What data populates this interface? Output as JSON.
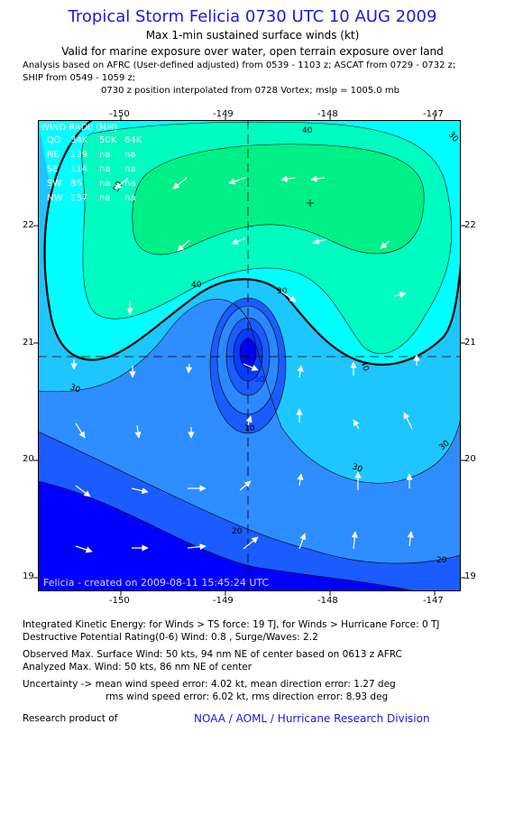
{
  "header": {
    "title": "Tropical Storm Felicia 0730 UTC 10 AUG 2009",
    "subtitle": "Max 1-min sustained surface winds (kt)",
    "valid": "Valid for marine exposure over water, open terrain exposure over land",
    "analysis_line1": "Analysis based on  AFRC (User-defined adjusted) from 0539 - 1103 z;  ASCAT from 0729 - 0732 z;",
    "analysis_line2": "SHIP from 0549 - 1059 z;",
    "analysis_line3": "0730 z position interpolated from 0728 Vortex; mslp = 1005.0 mb"
  },
  "map": {
    "lon_labels": [
      "-150",
      "-149",
      "-148",
      "-147"
    ],
    "lat_labels": [
      "22",
      "21",
      "20",
      "19"
    ],
    "contour_labels": [
      "40",
      "50",
      "30",
      "40",
      "40",
      "30",
      "30",
      "30",
      "10",
      "30",
      "20",
      "20",
      "50"
    ],
    "wind_radii": {
      "title": "WIND RADII (NM)",
      "header": [
        "QD",
        "34K",
        "50K",
        "64K"
      ],
      "rows": [
        [
          "NE",
          "139",
          "na",
          "na"
        ],
        [
          "SE",
          "114",
          "na",
          "na"
        ],
        [
          "SW",
          "85",
          "na",
          "na"
        ],
        [
          "NW",
          "137",
          "na",
          "na"
        ]
      ]
    },
    "credit": "Felicia - created on 2009-08-11 15:45:24 UTC",
    "colors": {
      "band_0_10": "#0000ff",
      "band_10_20": "#1a5cff",
      "band_20_30": "#2e8dff",
      "band_30_34": "#1ec6ff",
      "band_34_40": "#00ffff",
      "band_40_50": "#00fcc0",
      "band_50plus": "#00f088"
    }
  },
  "footer": {
    "ike": "Integrated Kinetic Energy:  for Winds > TS force: 19 TJ,  for Winds > Hurricane Force: 0 TJ",
    "dpr": "Destructive Potential Rating(0-6)   Wind: 0.8 , Surge/Waves: 2.2",
    "observed": "Observed Max. Surface Wind: 50 kts, 94 nm NE of center based on 0613 z AFRC",
    "analyzed": "Analyzed Max. Wind: 50 kts, 86 nm NE of center",
    "uncertainty1": "Uncertainty -> mean wind speed error: 4.02 kt,   mean direction error: 1.27 deg",
    "uncertainty2": "rms wind speed error: 6.02 kt,   rms direction error: 8.93 deg",
    "research_label": "Research product of",
    "research_org": "NOAA / AOML / Hurricane Research Division"
  }
}
